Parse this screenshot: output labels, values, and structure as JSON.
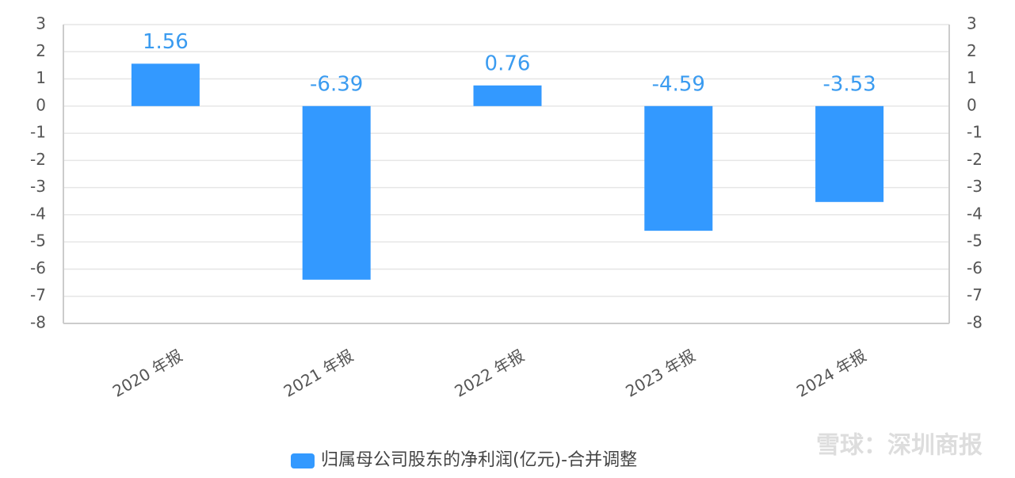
{
  "chart_data": {
    "type": "bar",
    "categories": [
      "2020 年报",
      "2021 年报",
      "2022 年报",
      "2023 年报",
      "2024 年报"
    ],
    "series": [
      {
        "name": "归属母公司股东的净利润(亿元)-合并调整",
        "color": "#3399ff",
        "values": [
          1.56,
          -6.39,
          0.76,
          -4.59,
          -3.53
        ]
      }
    ],
    "ylim": [
      -8,
      3
    ],
    "yticks": [
      3,
      2,
      1,
      0,
      -1,
      -2,
      -3,
      -4,
      -5,
      -6,
      -7,
      -8
    ],
    "y2lim": [
      -8,
      3
    ],
    "y2ticks": [
      3,
      2,
      1,
      0,
      -1,
      -2,
      -3,
      -4,
      -5,
      -6,
      -7,
      -8
    ],
    "grid": true,
    "legend": "bottom",
    "watermark": "雪球：深圳商报"
  }
}
